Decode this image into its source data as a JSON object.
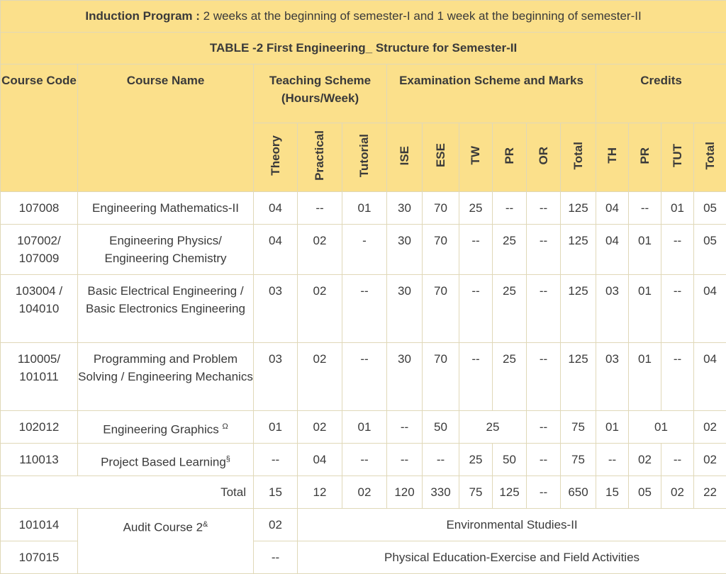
{
  "induction": {
    "label": "Induction Program :",
    "text": " 2 weeks at the beginning of semester-I and 1 week at the beginning of semester-II"
  },
  "table_title": "TABLE -2 First Engineering_ Structure for Semester-II",
  "headers": {
    "course_code": "Course Code",
    "course_name": "Course Name",
    "teaching": "Teaching Scheme (Hours/Week)",
    "exam": "Examination Scheme and Marks",
    "credits": "Credits"
  },
  "subheaders": {
    "teaching": [
      "Theory",
      "Practical",
      "Tutorial"
    ],
    "exam": [
      "ISE",
      "ESE",
      "TW",
      "PR",
      "OR",
      "Total"
    ],
    "credits": [
      "TH",
      "PR",
      "TUT",
      "Total"
    ]
  },
  "rows": [
    {
      "code": "107008",
      "name": "Engineering Mathematics-II",
      "teach": [
        "04",
        "--",
        "01"
      ],
      "exam": [
        "30",
        "70",
        "25",
        "--",
        "--",
        "125"
      ],
      "credits": [
        "04",
        "--",
        "01",
        "05"
      ]
    },
    {
      "code": "107002/ 107009",
      "name": "Engineering Physics/ Engineering Chemistry",
      "teach": [
        "04",
        "02",
        "-"
      ],
      "exam": [
        "30",
        "70",
        "--",
        "25",
        "--",
        "125"
      ],
      "credits": [
        "04",
        "01",
        "--",
        "05"
      ]
    },
    {
      "code": "103004 / 104010",
      "name": "Basic Electrical Engineering / Basic Electronics Engineering",
      "teach": [
        "03",
        "02",
        "--"
      ],
      "exam": [
        "30",
        "70",
        "--",
        "25",
        "--",
        "125"
      ],
      "credits": [
        "03",
        "01",
        "--",
        "04"
      ]
    },
    {
      "code": "110005/ 101011",
      "name": "Programming and Problem Solving / Engineering Mechanics",
      "teach": [
        "03",
        "02",
        "--"
      ],
      "exam": [
        "30",
        "70",
        "--",
        "25",
        "--",
        "125"
      ],
      "credits": [
        "03",
        "01",
        "--",
        "04"
      ]
    },
    {
      "code": "102012",
      "name": "Engineering Graphics",
      "name_sup": "Ω",
      "teach": [
        "01",
        "02",
        "01"
      ],
      "exam_ise": "--",
      "exam_ese": "50",
      "exam_twpr": "25",
      "exam_or": "--",
      "exam_total": "75",
      "credit_th": "01",
      "credit_prtut": "01",
      "credit_total": "02"
    },
    {
      "code": "110013",
      "name": "Project Based Learning",
      "name_sup": "§",
      "teach": [
        "--",
        "04",
        "--"
      ],
      "exam": [
        "--",
        "--",
        "25",
        "50",
        "--",
        "75"
      ],
      "credits": [
        "--",
        "02",
        "--",
        "02"
      ]
    }
  ],
  "total_row": {
    "label": "Total",
    "teach": [
      "15",
      "12",
      "02"
    ],
    "exam": [
      "120",
      "330",
      "75",
      "125",
      "--",
      "650"
    ],
    "credits": [
      "15",
      "05",
      "02",
      "22"
    ]
  },
  "audit": {
    "name": "Audit Course 2",
    "name_sup": "&",
    "rows": [
      {
        "code": "101014",
        "theory": "02",
        "activity": "Environmental Studies-II"
      },
      {
        "code": "107015",
        "theory": "--",
        "activity": "Physical Education-Exercise and Field Activities"
      }
    ]
  }
}
